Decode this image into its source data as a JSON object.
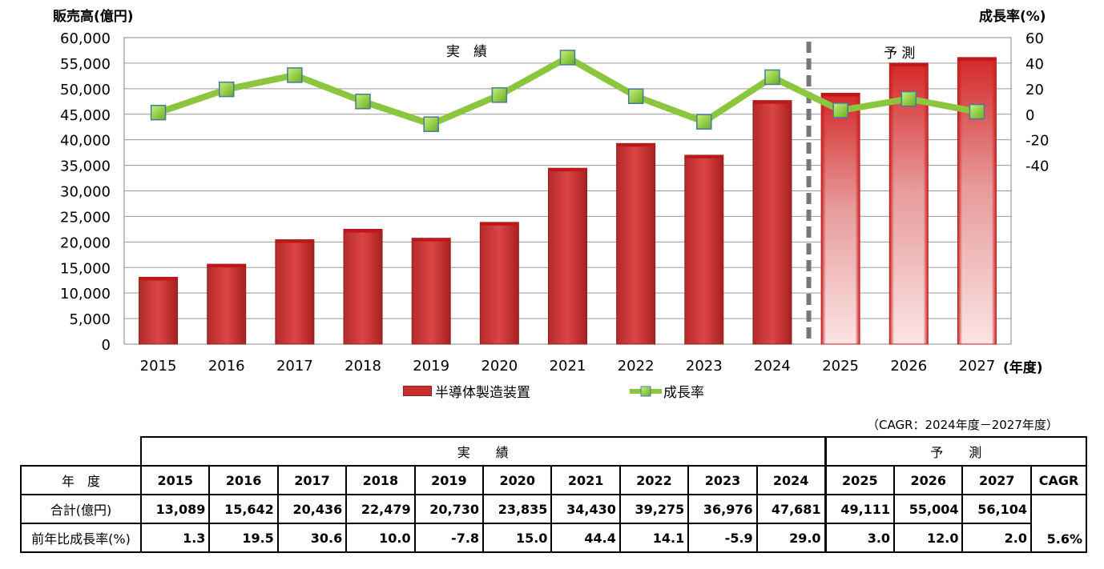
{
  "chart_data": {
    "type": "bar+line",
    "categories": [
      "2015",
      "2016",
      "2017",
      "2018",
      "2019",
      "2020",
      "2021",
      "2022",
      "2023",
      "2024",
      "2025",
      "2026",
      "2027"
    ],
    "series": [
      {
        "name": "半導体製造装置",
        "type": "bar",
        "axis": "left",
        "values": [
          13089,
          15642,
          20436,
          22479,
          20730,
          23835,
          34430,
          39275,
          36976,
          47681,
          49111,
          55004,
          56104
        ]
      },
      {
        "name": "成長率",
        "type": "line",
        "axis": "right",
        "values": [
          1.3,
          19.5,
          30.6,
          10.0,
          -7.8,
          15.0,
          44.4,
          14.1,
          -5.9,
          29.0,
          3.0,
          12.0,
          2.0
        ]
      }
    ],
    "forecast_from": "2025",
    "ylabel": "販売高(億円)",
    "y2label": "成長率(%)",
    "xlabel": "(年度)",
    "ylim": [
      0,
      60000
    ],
    "yticks": [
      "0",
      "5,000",
      "10,000",
      "15,000",
      "20,000",
      "25,000",
      "30,000",
      "35,000",
      "40,000",
      "45,000",
      "50,000",
      "55,000",
      "60,000"
    ],
    "y2lim": [
      -180,
      60
    ],
    "y2ticks": [
      "60",
      "40",
      "20",
      "0",
      "-20",
      "-40"
    ],
    "annotations": {
      "actual": "実　績",
      "forecast": "予 測"
    },
    "legend_position": "bottom",
    "colors": {
      "bar": "#d43a3a",
      "line": "#8cc63f",
      "marker_border": "#4a7a9a",
      "grid": "#999999"
    }
  },
  "table": {
    "note": "（CAGR：2024年度－2027年度）",
    "group_actual": "実　　績",
    "group_forecast": "予　　測",
    "header_label": "年　度",
    "years": [
      "2015",
      "2016",
      "2017",
      "2018",
      "2019",
      "2020",
      "2021",
      "2022",
      "2023",
      "2024",
      "2025",
      "2026",
      "2027"
    ],
    "cagr_label": "CAGR",
    "row_total_label": "合計(億円)",
    "totals": [
      "13,089",
      "15,642",
      "20,436",
      "22,479",
      "20,730",
      "23,835",
      "34,430",
      "39,275",
      "36,976",
      "47,681",
      "49,111",
      "55,004",
      "56,104"
    ],
    "row_growth_label": "前年比成長率(%)",
    "growth": [
      "1.3",
      "19.5",
      "30.6",
      "10.0",
      "-7.8",
      "15.0",
      "44.4",
      "14.1",
      "-5.9",
      "29.0",
      "3.0",
      "12.0",
      "2.0"
    ],
    "cagr_value": "5.6%"
  }
}
